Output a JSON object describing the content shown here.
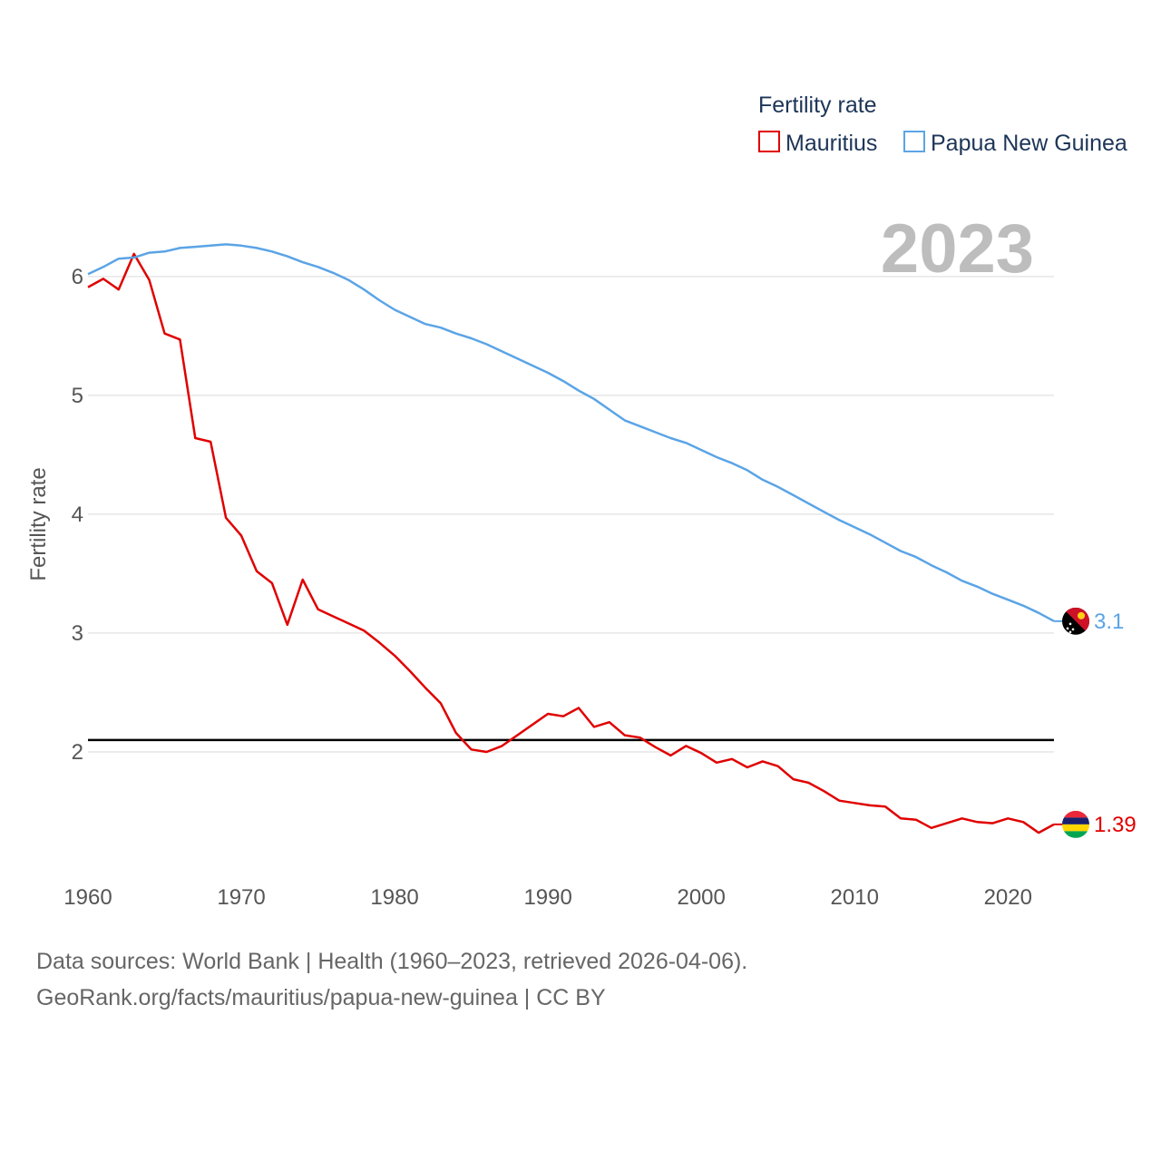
{
  "colors": {
    "mauritius": "#e00000",
    "png": "#5ba4e6",
    "reference_line": "#000000",
    "grid": "#e6e6e6"
  },
  "footer": {
    "line1": "Data sources: World Bank | Health (1960–2023, retrieved 2026-04-06).",
    "line2": "GeoRank.org/facts/mauritius/papua-new-guinea | CC BY"
  },
  "chart_data": {
    "type": "line",
    "legend_title": "Fertility rate",
    "legend_position": "top-right",
    "ylabel": "Fertility rate",
    "xlabel": "",
    "year_label": "2023",
    "xlim": [
      1960,
      2023
    ],
    "ylim": [
      1.0,
      6.8
    ],
    "x_ticks": [
      1960,
      1970,
      1980,
      1990,
      2000,
      2010,
      2020
    ],
    "y_ticks": [
      2,
      3,
      4,
      5,
      6
    ],
    "reference_line": 2.1,
    "years": [
      1960,
      1961,
      1962,
      1963,
      1964,
      1965,
      1966,
      1967,
      1968,
      1969,
      1970,
      1971,
      1972,
      1973,
      1974,
      1975,
      1976,
      1977,
      1978,
      1979,
      1980,
      1981,
      1982,
      1983,
      1984,
      1985,
      1986,
      1987,
      1988,
      1989,
      1990,
      1991,
      1992,
      1993,
      1994,
      1995,
      1996,
      1997,
      1998,
      1999,
      2000,
      2001,
      2002,
      2003,
      2004,
      2005,
      2006,
      2007,
      2008,
      2009,
      2010,
      2011,
      2012,
      2013,
      2014,
      2015,
      2016,
      2017,
      2018,
      2019,
      2020,
      2021,
      2022,
      2023
    ],
    "series": [
      {
        "name": "Mauritius",
        "color_key": "mauritius",
        "end_label": "1.39",
        "flag": "mauritius-flag-icon",
        "values": [
          5.91,
          5.98,
          5.89,
          6.19,
          5.97,
          5.52,
          5.47,
          4.64,
          4.61,
          3.97,
          3.82,
          3.52,
          3.42,
          3.07,
          3.45,
          3.2,
          3.14,
          3.08,
          3.02,
          2.92,
          2.81,
          2.68,
          2.54,
          2.41,
          2.16,
          2.02,
          2.0,
          2.05,
          2.14,
          2.23,
          2.32,
          2.3,
          2.37,
          2.21,
          2.25,
          2.14,
          2.12,
          2.04,
          1.97,
          2.05,
          1.99,
          1.91,
          1.94,
          1.87,
          1.92,
          1.88,
          1.77,
          1.74,
          1.67,
          1.59,
          1.57,
          1.55,
          1.54,
          1.44,
          1.43,
          1.36,
          1.4,
          1.44,
          1.41,
          1.4,
          1.44,
          1.41,
          1.32,
          1.39
        ]
      },
      {
        "name": "Papua New Guinea",
        "color_key": "png",
        "end_label": "3.1",
        "flag": "papua-new-guinea-flag-icon",
        "values": [
          6.02,
          6.08,
          6.15,
          6.16,
          6.2,
          6.21,
          6.24,
          6.25,
          6.26,
          6.27,
          6.26,
          6.24,
          6.21,
          6.17,
          6.12,
          6.08,
          6.03,
          5.97,
          5.89,
          5.8,
          5.72,
          5.66,
          5.6,
          5.57,
          5.52,
          5.48,
          5.43,
          5.37,
          5.31,
          5.25,
          5.19,
          5.12,
          5.04,
          4.97,
          4.88,
          4.79,
          4.74,
          4.69,
          4.64,
          4.6,
          4.54,
          4.48,
          4.43,
          4.37,
          4.29,
          4.23,
          4.16,
          4.09,
          4.02,
          3.95,
          3.89,
          3.83,
          3.76,
          3.69,
          3.64,
          3.57,
          3.51,
          3.44,
          3.39,
          3.33,
          3.28,
          3.23,
          3.17,
          3.1
        ]
      }
    ]
  }
}
